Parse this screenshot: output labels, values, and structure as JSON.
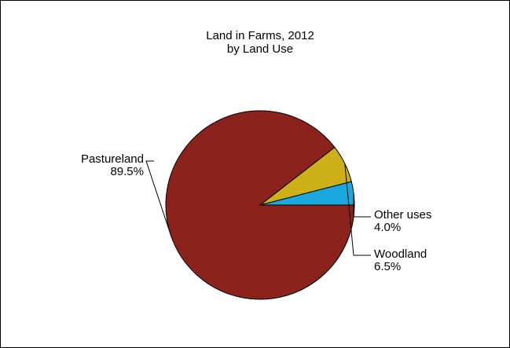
{
  "chart_data": {
    "type": "pie",
    "title": "Land in Farms, 2012",
    "subtitle": "by Land Use",
    "slices": [
      {
        "label": "Pastureland",
        "value": 89.5,
        "value_label": "89.5%",
        "color": "#8B231C"
      },
      {
        "label": "Woodland",
        "value": 6.5,
        "value_label": "6.5%",
        "color": "#CDB018"
      },
      {
        "label": "Other uses",
        "value": 4.0,
        "value_label": "4.0%",
        "color": "#1BA8DD"
      }
    ],
    "legend": "none"
  }
}
